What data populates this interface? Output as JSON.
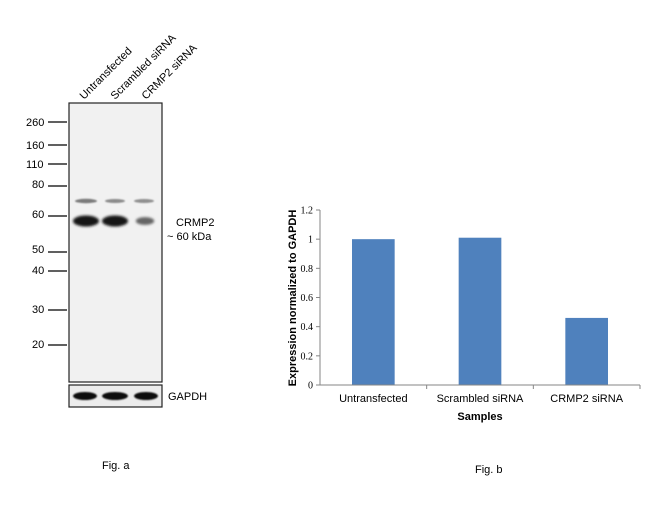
{
  "figure_a": {
    "caption": "Fig. a",
    "lanes": [
      "Untransfected",
      "Scrambled siRNA",
      "CRMP2 siRNA"
    ],
    "markers": [
      260,
      160,
      110,
      80,
      60,
      50,
      40,
      30,
      20
    ],
    "band_label": "CRMP2",
    "band_size": "~ 60 kDa",
    "loading_control": "GAPDH",
    "band_intensity": [
      1.0,
      1.0,
      0.46
    ]
  },
  "figure_b": {
    "caption": "Fig. b"
  },
  "chart_data": {
    "type": "bar",
    "categories": [
      "Untransfected",
      "Scrambled siRNA",
      "CRMP2 siRNA"
    ],
    "values": [
      1.0,
      1.01,
      0.46
    ],
    "title": "",
    "xlabel": "Samples",
    "ylabel": "Expression normalized to GAPDH",
    "ylim": [
      0,
      1.2
    ],
    "yticks": [
      "0",
      "0.2",
      "0.4",
      "0.6",
      "0.8",
      "1",
      "1.2"
    ],
    "grid": false,
    "bar_color": "#4f81bd"
  }
}
